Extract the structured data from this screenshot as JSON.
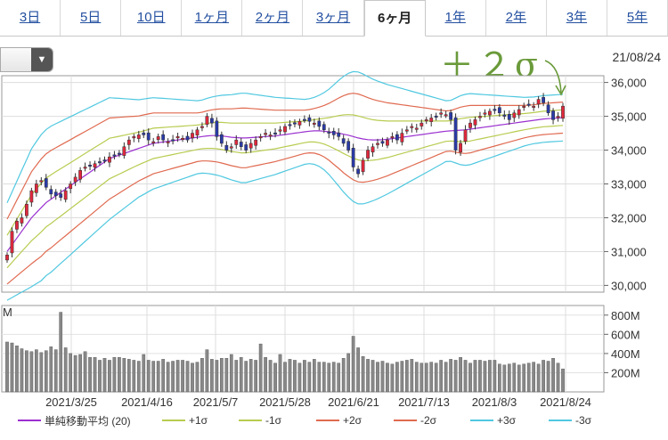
{
  "tabs": [
    {
      "label": "3日",
      "active": false
    },
    {
      "label": "5日",
      "active": false
    },
    {
      "label": "10日",
      "active": false
    },
    {
      "label": "1ヶ月",
      "active": false
    },
    {
      "label": "2ヶ月",
      "active": false
    },
    {
      "label": "3ヶ月",
      "active": false
    },
    {
      "label": "6ヶ月",
      "active": true
    },
    {
      "label": "1年",
      "active": false
    },
    {
      "label": "2年",
      "active": false
    },
    {
      "label": "3年",
      "active": false
    },
    {
      "label": "5年",
      "active": false
    }
  ],
  "select": {
    "arrow_icon": "triangle-down-icon"
  },
  "annotation": {
    "text": "＋２σ",
    "color": "#6a9a3a"
  },
  "chart_data": {
    "type": "candlestick",
    "last_date_label": "21/08/24",
    "price_axis": {
      "min": 30000,
      "max": 36000,
      "ticks": [
        "36,000",
        "35,000",
        "34,000",
        "33,000",
        "32,000",
        "31,000",
        "30,000"
      ]
    },
    "volume_axis": {
      "ticks": [
        "800M",
        "600M",
        "400M",
        "200M"
      ],
      "unit_label": "M"
    },
    "x_labels": [
      "2021/3/25",
      "2021/4/16",
      "2021/5/7",
      "2021/5/28",
      "2021/6/21",
      "2021/7/13",
      "2021/8/3",
      "2021/8/24"
    ],
    "close": [
      30900,
      31600,
      31900,
      32000,
      32400,
      32800,
      33000,
      33100,
      32900,
      32700,
      32650,
      32600,
      32800,
      33000,
      33200,
      33400,
      33500,
      33550,
      33600,
      33650,
      33700,
      33800,
      33850,
      33900,
      34100,
      34300,
      34400,
      34450,
      34450,
      34300,
      34250,
      34400,
      34300,
      34250,
      34300,
      34400,
      34350,
      34300,
      34500,
      34600,
      34700,
      35000,
      34800,
      34400,
      34200,
      34000,
      34100,
      34300,
      34100,
      34000,
      34200,
      34300,
      34400,
      34500,
      34450,
      34500,
      34600,
      34700,
      34750,
      34800,
      34850,
      34900,
      34850,
      34800,
      34700,
      34600,
      34500,
      34450,
      34400,
      34200,
      34000,
      33500,
      33300,
      33700,
      34000,
      34100,
      34200,
      34200,
      34300,
      34400,
      34300,
      34500,
      34600,
      34700,
      34650,
      34800,
      34900,
      34950,
      35000,
      35100,
      35050,
      34900,
      34000,
      34200,
      34600,
      34800,
      34900,
      35000,
      35100,
      35150,
      35200,
      35100,
      35000,
      34900,
      35100,
      35200,
      35300,
      35350,
      35300,
      35500,
      35400,
      35100,
      34900,
      35000,
      35300
    ],
    "volume": [
      520,
      510,
      480,
      450,
      430,
      420,
      440,
      410,
      430,
      470,
      440,
      830,
      460,
      400,
      380,
      390,
      420,
      360,
      360,
      330,
      350,
      330,
      360,
      360,
      350,
      340,
      330,
      320,
      390,
      330,
      320,
      320,
      340,
      310,
      320,
      330,
      330,
      320,
      300,
      310,
      350,
      440,
      340,
      330,
      350,
      350,
      390,
      330,
      360,
      320,
      340,
      330,
      500,
      360,
      330,
      300,
      390,
      310,
      340,
      330,
      300,
      330,
      310,
      340,
      310,
      310,
      300,
      310,
      300,
      350,
      400,
      580,
      460,
      370,
      340,
      330,
      310,
      320,
      300,
      290,
      310,
      320,
      330,
      340,
      310,
      300,
      300,
      310,
      300,
      330,
      310,
      340,
      330,
      360,
      330,
      300,
      330,
      330,
      320,
      330,
      330,
      290,
      280,
      290,
      300,
      280,
      290,
      300,
      310,
      290,
      330,
      320,
      350,
      300,
      240
    ],
    "ma20": [
      31000,
      31200,
      31400,
      31600,
      31800,
      32000,
      32150,
      32300,
      32450,
      32550,
      32650,
      32750,
      32850,
      32950,
      33050,
      33150,
      33250,
      33350,
      33450,
      33550,
      33650,
      33750,
      33800,
      33850,
      33900,
      33950,
      34000,
      34050,
      34100,
      34150,
      34200,
      34220,
      34240,
      34260,
      34280,
      34300,
      34320,
      34340,
      34360,
      34380,
      34400,
      34420,
      34430,
      34430,
      34420,
      34400,
      34380,
      34370,
      34360,
      34360,
      34370,
      34380,
      34390,
      34400,
      34410,
      34420,
      34440,
      34460,
      34480,
      34500,
      34520,
      34540,
      34560,
      34570,
      34570,
      34560,
      34540,
      34520,
      34500,
      34470,
      34440,
      34400,
      34360,
      34330,
      34310,
      34300,
      34300,
      34310,
      34320,
      34340,
      34360,
      34380,
      34400,
      34420,
      34440,
      34460,
      34480,
      34500,
      34520,
      34540,
      34560,
      34570,
      34580,
      34590,
      34600,
      34620,
      34640,
      34660,
      34680,
      34700,
      34720,
      34740,
      34760,
      34780,
      34800,
      34820,
      34840,
      34860,
      34880,
      34900,
      34920,
      34930,
      34940,
      34950,
      34960
    ],
    "sigma": [
      480,
      520,
      560,
      600,
      640,
      680,
      700,
      720,
      720,
      720,
      710,
      700,
      690,
      680,
      670,
      660,
      650,
      640,
      630,
      620,
      610,
      600,
      580,
      560,
      540,
      520,
      500,
      480,
      470,
      460,
      450,
      440,
      430,
      420,
      410,
      400,
      390,
      380,
      370,
      360,
      360,
      370,
      380,
      390,
      400,
      410,
      420,
      430,
      440,
      440,
      430,
      420,
      410,
      400,
      390,
      380,
      370,
      360,
      350,
      340,
      330,
      320,
      320,
      330,
      350,
      380,
      420,
      470,
      520,
      570,
      610,
      640,
      650,
      640,
      620,
      600,
      580,
      560,
      540,
      520,
      500,
      480,
      460,
      440,
      420,
      400,
      380,
      360,
      340,
      320,
      300,
      300,
      320,
      340,
      350,
      350,
      340,
      330,
      320,
      310,
      300,
      290,
      280,
      270,
      260,
      250,
      240,
      235,
      230,
      230,
      230,
      230,
      230,
      230,
      230
    ],
    "series": [
      {
        "name": "単純移動平均 (20)",
        "color": "#9b30d0"
      },
      {
        "name": "+1σ",
        "color": "#b8cc50"
      },
      {
        "name": "-1σ",
        "color": "#b8cc50"
      },
      {
        "name": "+2σ",
        "color": "#e06a50"
      },
      {
        "name": "-2σ",
        "color": "#e06a50"
      },
      {
        "name": "+3σ",
        "color": "#50c8e0"
      },
      {
        "name": "-3σ",
        "color": "#50c8e0"
      }
    ],
    "legend_placement": "bottom",
    "grid": true
  }
}
